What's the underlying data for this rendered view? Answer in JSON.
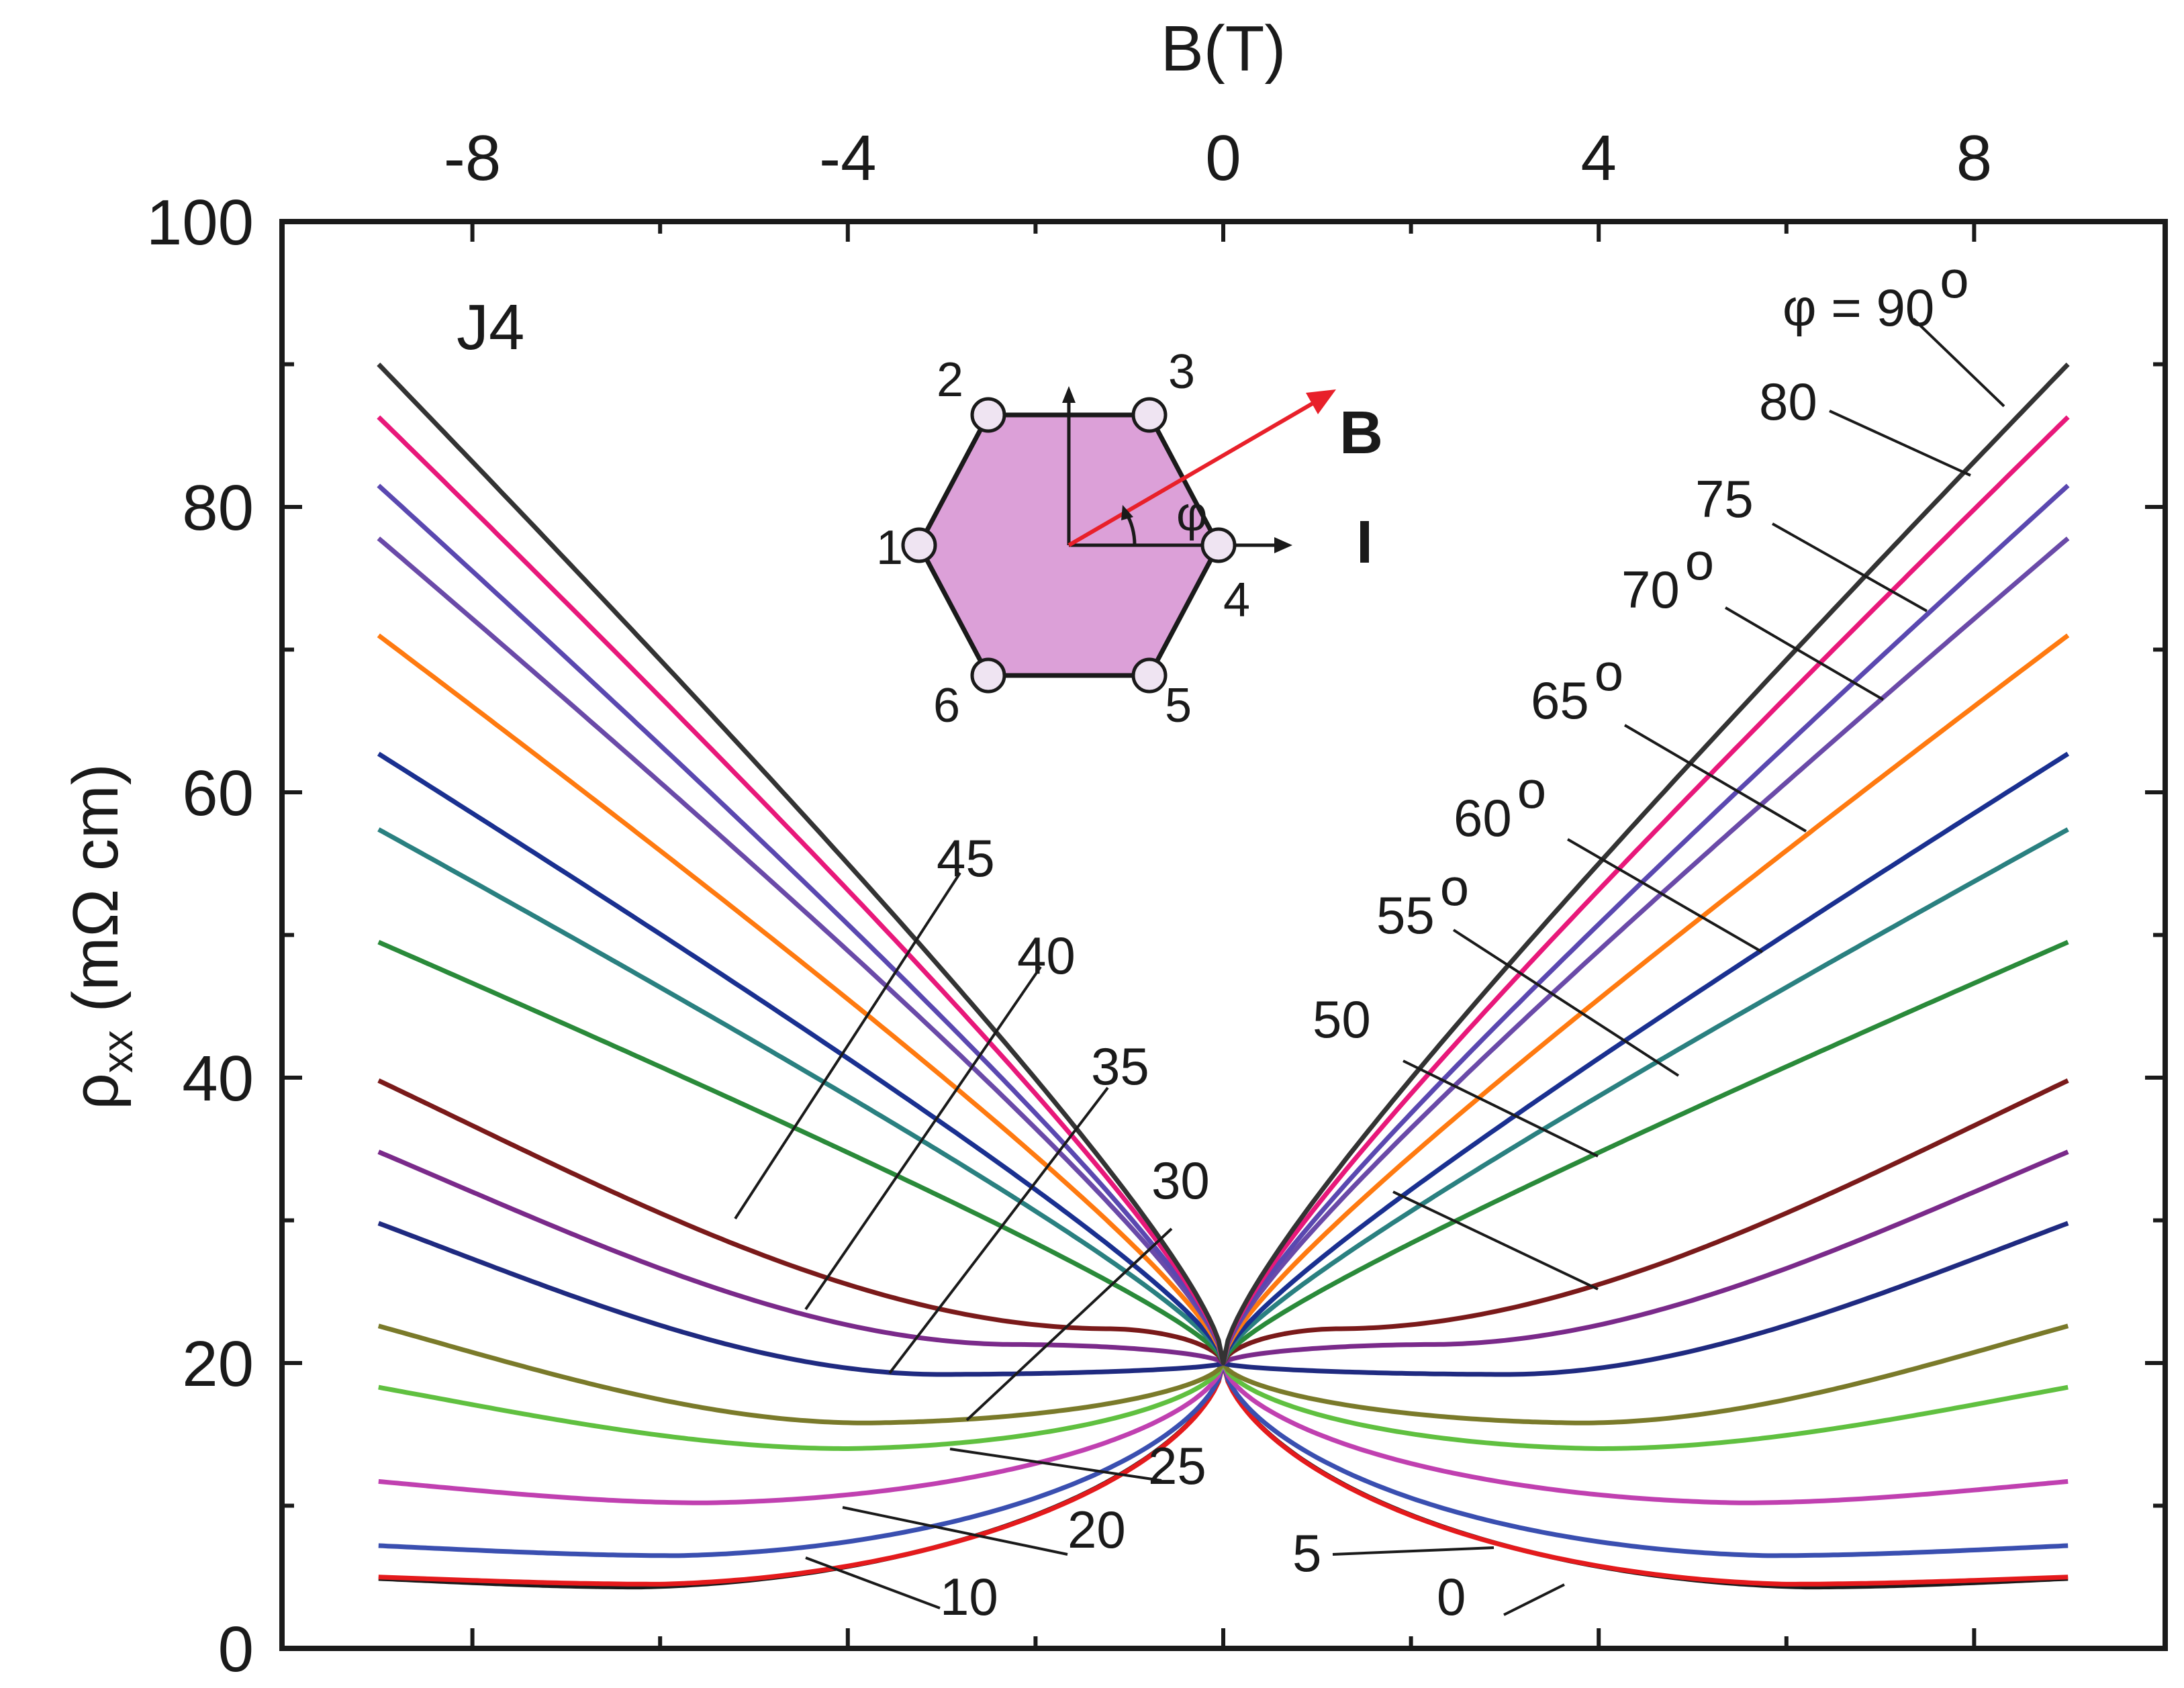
{
  "chart_data": {
    "type": "line",
    "sample_label": "J4",
    "xlabel": "B(T)",
    "ylabel": "ρxx (mΩ cm)",
    "ylabel_parts": {
      "main": "ρ",
      "sub": "xx",
      "unit": " (mΩ cm)"
    },
    "xlim": [
      -10,
      10
    ],
    "ylim": [
      0,
      100
    ],
    "x_ticks": [
      "-8",
      "-4",
      "0",
      "4",
      "8"
    ],
    "x_tick_values": [
      -8,
      -4,
      0,
      4,
      8
    ],
    "y_ticks": [
      "0",
      "20",
      "40",
      "60",
      "80",
      "100"
    ],
    "y_tick_values": [
      0,
      20,
      40,
      60,
      80,
      100
    ],
    "grid": false,
    "x_axis_position": "top",
    "series": [
      {
        "label": "0",
        "color": "#1a1a1a",
        "end": 4.9,
        "min": 4.3,
        "xmin": 6.2,
        "shape": "dip"
      },
      {
        "label": "5",
        "color": "#e41a1c",
        "end": 5.0,
        "min": 4.5,
        "xmin": 6.0,
        "shape": "dip"
      },
      {
        "label": "10",
        "color": "#3a4fb0",
        "end": 7.2,
        "min": 6.5,
        "xmin": 5.8,
        "shape": "dip"
      },
      {
        "label": "20",
        "color": "#c040b0",
        "end": 11.7,
        "min": 10.2,
        "xmin": 5.5,
        "shape": "dip"
      },
      {
        "label": "25",
        "color": "#60c040",
        "end": 18.3,
        "min": 14.0,
        "xmin": 4.0,
        "shape": "dip"
      },
      {
        "label": "30",
        "color": "#7a7a2a",
        "end": 22.6,
        "min": 15.8,
        "xmin": 3.8,
        "shape": "dip"
      },
      {
        "label": "35",
        "color": "#1f2a80",
        "end": 29.8,
        "min": 19.2,
        "xmin": 3.0,
        "shape": "dip"
      },
      {
        "label": "40",
        "color": "#7a2a8a",
        "end": 34.8,
        "min": 21.3,
        "xmin": 2.2,
        "shape": "dip"
      },
      {
        "label": "45",
        "color": "#7a1a1a",
        "end": 39.8,
        "min": 22.4,
        "xmin": 1.2,
        "shape": "dip"
      },
      {
        "label": "50",
        "color": "#2a8a3a",
        "end": 49.5,
        "shape": "rise"
      },
      {
        "label": "55",
        "color": "#2a8080",
        "end": 57.4,
        "shape": "rise"
      },
      {
        "label": "60",
        "color": "#1a3090",
        "end": 62.7,
        "shape": "rise"
      },
      {
        "label": "65",
        "color": "#ff7a10",
        "end": 71.0,
        "shape": "rise"
      },
      {
        "label": "70",
        "color": "#6a4aa8",
        "end": 77.8,
        "shape": "rise"
      },
      {
        "label": "75",
        "color": "#5a48b0",
        "end": 81.5,
        "shape": "rise"
      },
      {
        "label": "80",
        "color": "#e8187a",
        "end": 86.3,
        "shape": "rise"
      },
      {
        "label": "90",
        "color": "#333333",
        "end": 90.0,
        "shape": "rise"
      }
    ],
    "zero_field_value": 20,
    "annotations": {
      "right": [
        "φ = 90",
        "80",
        "75",
        "70",
        "65",
        "60",
        "55",
        "50",
        "5",
        "0"
      ],
      "degree": "o",
      "left": [
        "45",
        "40",
        "35",
        "30",
        "25",
        "20",
        "10"
      ]
    },
    "inset": {
      "contact_labels": [
        "1",
        "2",
        "3",
        "4",
        "5",
        "6"
      ],
      "field_label": "B",
      "current_label": "I",
      "angle_label": "φ",
      "fill_color": "#dca0d8",
      "field_color": "#e8202a"
    }
  }
}
